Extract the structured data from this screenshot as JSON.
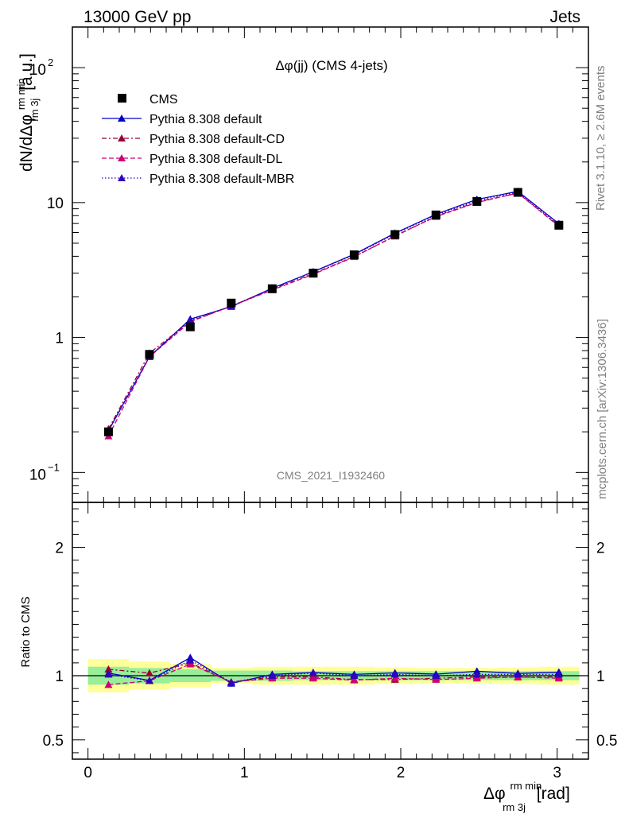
{
  "header": {
    "left": "13000 GeV pp",
    "right": "Jets"
  },
  "side_text": {
    "rivet": "Rivet 3.1.10, ≥ 2.6M events",
    "mcplots": "mcplots.cern.ch [arXiv:1306.3436]"
  },
  "chart_data": {
    "type": "scatter",
    "title": "Δφ(jj) (CMS 4-jets)",
    "analysis_id": "CMS_2021_I1932460",
    "ylabel": "dN/dΔφ",
    "ylabel_sup": "rm min",
    "ylabel_sub": "rm 3j",
    "ylabel_unit": "[a.u.]",
    "xlabel": "Δφ",
    "xlabel_sup": "rm min",
    "xlabel_sub": "rm 3j",
    "xlabel_unit": "[rad]",
    "ratio_ylabel": "Ratio to CMS",
    "xlim": [
      -0.1,
      3.2
    ],
    "ylim": [
      0.06,
      200
    ],
    "yscale": "log",
    "ratio_ylim": [
      0.35,
      2.35
    ],
    "x_ticks": [
      "0",
      "1",
      "2",
      "3"
    ],
    "y_ticks": [
      "10",
      "1"
    ],
    "y_tick_pow_100": "10",
    "y_tick_pow_100_exp": "2",
    "y_tick_pow_01": "10",
    "y_tick_pow_01_exp": "−1",
    "ratio_ticks": [
      "2",
      "1",
      "0.5"
    ],
    "x": [
      0.131,
      0.393,
      0.654,
      0.916,
      1.178,
      1.44,
      1.702,
      1.963,
      2.225,
      2.487,
      2.749,
      3.011
    ],
    "bin_edges": [
      0.0,
      0.262,
      0.524,
      0.785,
      1.047,
      1.309,
      1.571,
      1.833,
      2.094,
      2.356,
      2.618,
      2.88,
      3.142
    ],
    "data": {
      "name": "CMS",
      "values": [
        0.2,
        0.75,
        1.2,
        1.8,
        2.3,
        3.0,
        4.1,
        5.8,
        8.1,
        10.2,
        11.9,
        6.8
      ],
      "band_green": [
        0.07,
        0.06,
        0.05,
        0.04,
        0.04,
        0.035,
        0.035,
        0.035,
        0.035,
        0.035,
        0.035,
        0.035
      ],
      "band_yellow": [
        0.13,
        0.11,
        0.09,
        0.06,
        0.07,
        0.07,
        0.07,
        0.065,
        0.06,
        0.06,
        0.065,
        0.07
      ]
    },
    "series": [
      {
        "name": "Pythia 8.308 default",
        "color": "#0000cc",
        "dash": "",
        "values": [
          0.204,
          0.722,
          1.368,
          1.693,
          2.32,
          3.07,
          4.14,
          5.93,
          8.19,
          10.56,
          12.11,
          6.98
        ],
        "ratio": [
          1.02,
          0.963,
          1.14,
          0.94,
          1.01,
          1.025,
          1.01,
          1.022,
          1.012,
          1.035,
          1.018,
          1.027
        ]
      },
      {
        "name": "Pythia 8.308 default-CD",
        "color": "#990033",
        "dash": "6,3,2,3",
        "values": [
          0.21,
          0.765,
          1.32,
          1.71,
          2.28,
          2.97,
          3.98,
          5.63,
          7.94,
          10.1,
          11.76,
          6.73
        ],
        "ratio": [
          1.05,
          1.02,
          1.1,
          0.95,
          0.99,
          0.99,
          0.97,
          0.97,
          0.98,
          0.99,
          0.988,
          0.99
        ]
      },
      {
        "name": "Pythia 8.308 default-DL",
        "color": "#cc0077",
        "dash": "6,3",
        "values": [
          0.186,
          0.72,
          1.308,
          1.71,
          2.25,
          2.94,
          3.96,
          5.68,
          7.86,
          10.0,
          11.78,
          6.66
        ],
        "ratio": [
          0.93,
          0.96,
          1.09,
          0.95,
          0.98,
          0.98,
          0.965,
          0.98,
          0.97,
          0.98,
          0.99,
          0.98
        ]
      },
      {
        "name": "Pythia 8.308 default-MBR",
        "color": "#3300bb",
        "dash": "1.5,2.5",
        "values": [
          0.202,
          0.72,
          1.344,
          1.71,
          2.3,
          3.06,
          4.1,
          5.86,
          8.1,
          10.3,
          12.0,
          6.87
        ],
        "ratio": [
          1.01,
          0.96,
          1.12,
          0.95,
          1.0,
          1.02,
          1.0,
          1.01,
          1.0,
          1.01,
          1.01,
          1.01
        ]
      }
    ]
  }
}
